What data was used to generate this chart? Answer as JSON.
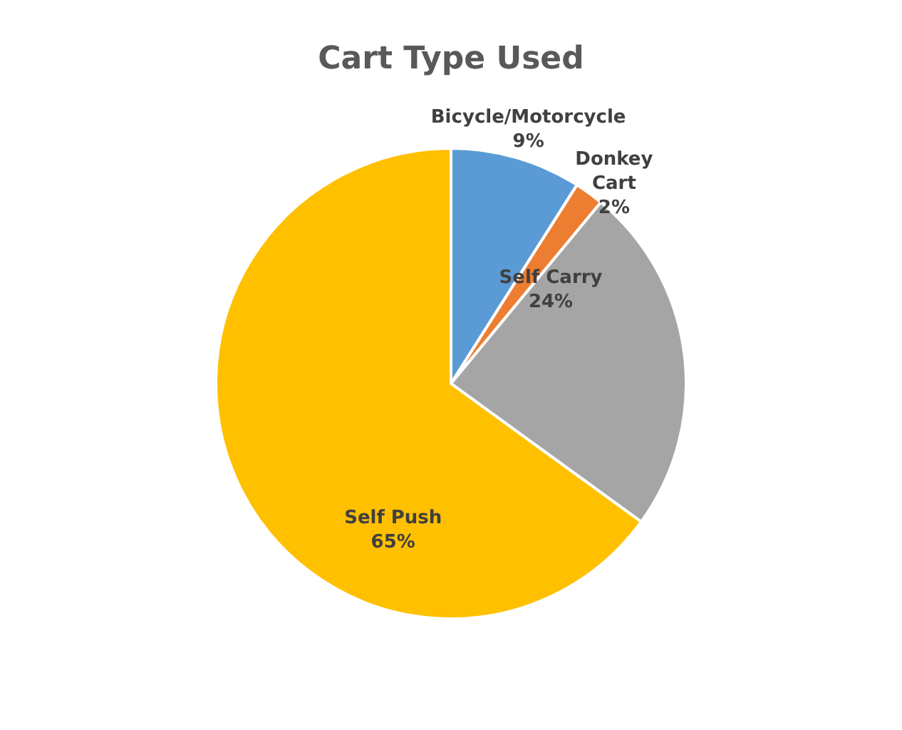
{
  "chart_data": {
    "type": "pie",
    "title": "Cart Type Used",
    "categories": [
      "Bicycle/Motorcycle",
      "Donkey Cart",
      "Self Carry",
      "Self Push"
    ],
    "values": [
      9,
      2,
      24,
      65
    ],
    "colors": [
      "#5b9bd5",
      "#ed7d31",
      "#a5a5a5",
      "#ffc000"
    ],
    "value_labels": [
      "9%",
      "2%",
      "24%",
      "65%"
    ],
    "legend": false
  }
}
